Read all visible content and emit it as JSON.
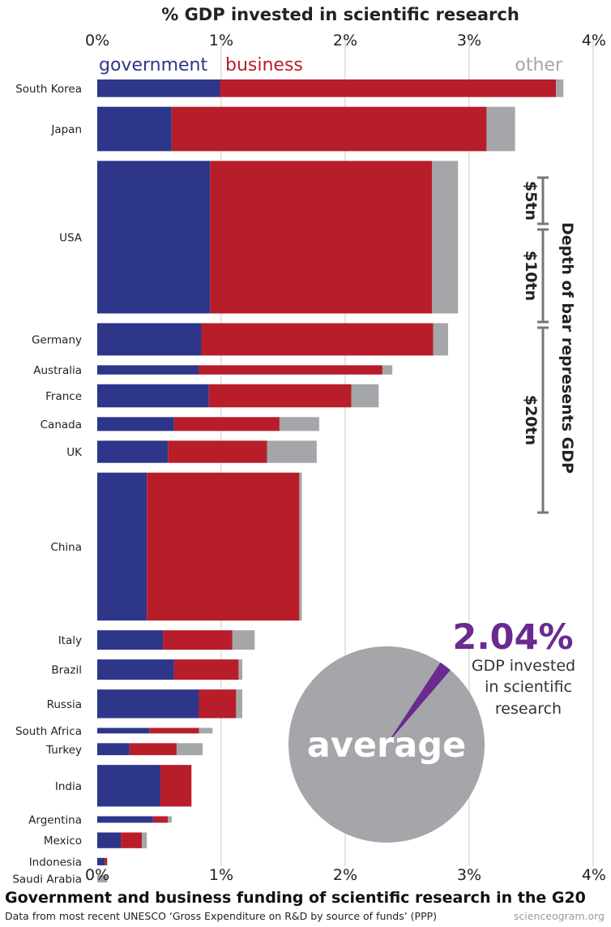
{
  "chart_data": {
    "type": "bar",
    "orientation": "horizontal",
    "stacked": true,
    "title": "% GDP invested in scientific research",
    "x_ticks": [
      "0%",
      "1%",
      "2%",
      "3%",
      "4%"
    ],
    "xlim": [
      0,
      4
    ],
    "grid": true,
    "series": [
      {
        "name": "government",
        "color": "#2e3689"
      },
      {
        "name": "business",
        "color": "#b81d2a"
      },
      {
        "name": "other",
        "color": "#a4a6a9"
      }
    ],
    "categories": [
      {
        "country": "South Korea",
        "gdp_trn": 1.9,
        "government": 0.99,
        "business": 2.71,
        "other": 0.06
      },
      {
        "country": "Japan",
        "gdp_trn": 4.8,
        "government": 0.6,
        "business": 2.54,
        "other": 0.23
      },
      {
        "country": "USA",
        "gdp_trn": 16.5,
        "government": 0.91,
        "business": 1.79,
        "other": 0.21
      },
      {
        "country": "Germany",
        "gdp_trn": 3.5,
        "government": 0.84,
        "business": 1.87,
        "other": 0.12
      },
      {
        "country": "Australia",
        "gdp_trn": 1.0,
        "government": 0.82,
        "business": 1.48,
        "other": 0.08
      },
      {
        "country": "France",
        "gdp_trn": 2.5,
        "government": 0.9,
        "business": 1.15,
        "other": 0.22
      },
      {
        "country": "Canada",
        "gdp_trn": 1.5,
        "government": 0.62,
        "business": 0.85,
        "other": 0.32
      },
      {
        "country": "UK",
        "gdp_trn": 2.4,
        "government": 0.57,
        "business": 0.8,
        "other": 0.4
      },
      {
        "country": "China",
        "gdp_trn": 16.0,
        "government": 0.4,
        "business": 1.23,
        "other": 0.02
      },
      {
        "country": "Italy",
        "gdp_trn": 2.1,
        "government": 0.53,
        "business": 0.56,
        "other": 0.18
      },
      {
        "country": "Brazil",
        "gdp_trn": 2.2,
        "government": 0.62,
        "business": 0.52,
        "other": 0.03
      },
      {
        "country": "Russia",
        "gdp_trn": 3.1,
        "government": 0.82,
        "business": 0.3,
        "other": 0.05
      },
      {
        "country": "South Africa",
        "gdp_trn": 0.6,
        "government": 0.42,
        "business": 0.4,
        "other": 0.11
      },
      {
        "country": "Turkey",
        "gdp_trn": 1.3,
        "government": 0.26,
        "business": 0.38,
        "other": 0.21
      },
      {
        "country": "India",
        "gdp_trn": 4.5,
        "government": 0.51,
        "business": 0.25,
        "other": 0.0
      },
      {
        "country": "Argentina",
        "gdp_trn": 0.7,
        "government": 0.45,
        "business": 0.12,
        "other": 0.03
      },
      {
        "country": "Mexico",
        "gdp_trn": 1.7,
        "government": 0.19,
        "business": 0.17,
        "other": 0.04
      },
      {
        "country": "Indonesia",
        "gdp_trn": 0.8,
        "government": 0.06,
        "business": 0.02,
        "other": 0.0
      },
      {
        "country": "Saudi Arabia",
        "gdp_trn": 0.8,
        "government": 0.0,
        "business": 0.0,
        "other": 0.08
      }
    ],
    "depth_scale": {
      "label": "Depth of bar represents GDP",
      "marks": [
        {
          "label": "$5tn",
          "value": 5
        },
        {
          "label": "$10tn",
          "value": 10
        },
        {
          "label": "$20tn",
          "value": 20
        }
      ]
    },
    "average": {
      "value_label": "2.04%",
      "value": 2.04,
      "caption": [
        "GDP invested",
        "in scientific",
        "research"
      ],
      "word": "average"
    }
  },
  "footer": {
    "title": "Government and business funding of scientific research in the G20",
    "source": "Data from most recent UNESCO ‘Gross Expenditure on R&D by source of funds’ (PPP)",
    "credit": "scienceogram.org"
  },
  "colors": {
    "accent_purple": "#6a2a8f",
    "grid": "#e4e4e4",
    "scale": "#777777"
  }
}
